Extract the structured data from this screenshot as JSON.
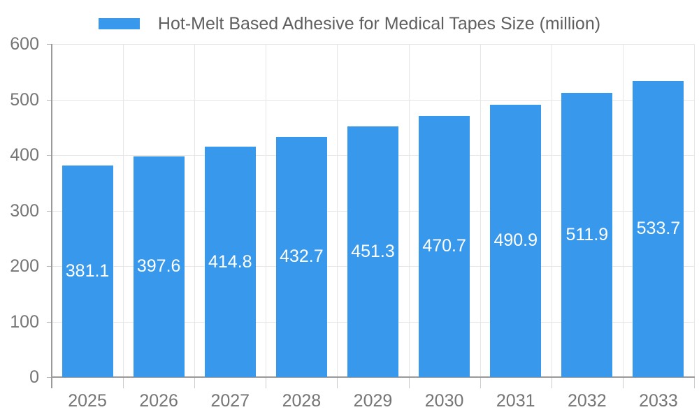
{
  "chart_data": {
    "type": "bar",
    "title": "Hot-Melt Based Adhesive for Medical Tapes Size (million)",
    "categories": [
      "2025",
      "2026",
      "2027",
      "2028",
      "2029",
      "2030",
      "2031",
      "2032",
      "2033"
    ],
    "values": [
      381.1,
      397.6,
      414.8,
      432.7,
      451.3,
      470.7,
      490.9,
      511.9,
      533.7
    ],
    "value_labels": [
      "381.1",
      "397.6",
      "414.8",
      "432.7",
      "451.3",
      "470.7",
      "490.9",
      "511.9",
      "533.7"
    ],
    "ylim": [
      0,
      600
    ],
    "y_ticks": [
      0,
      100,
      200,
      300,
      400,
      500,
      600
    ],
    "y_tick_labels": [
      "0",
      "100",
      "200",
      "300",
      "400",
      "500",
      "600"
    ],
    "grid": "horizontal and vertical gridlines on",
    "legend_position": "top-center",
    "colors": {
      "bar": "#3898ec",
      "grid": "#e6e6e6",
      "axis": "#9a9a9a",
      "y_tick_mark": "#b5b5b5",
      "x_tick_mark": "#cccccc",
      "tick_label_text": "#757575",
      "legend_text": "#5f5f5f",
      "bar_label_text": "#ffffff",
      "background": "#ffffff"
    }
  }
}
